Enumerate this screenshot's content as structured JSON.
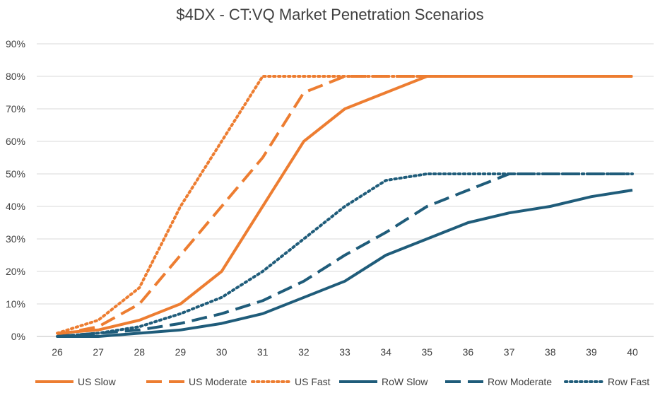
{
  "chart_data": {
    "type": "line",
    "title": "$4DX - CT:VQ Market Penetration Scenarios",
    "xlabel": "",
    "ylabel": "",
    "x": [
      26,
      27,
      28,
      29,
      30,
      31,
      32,
      33,
      34,
      35,
      36,
      37,
      38,
      39,
      40
    ],
    "x_tick_labels": [
      "26",
      "27",
      "28",
      "29",
      "30",
      "31",
      "32",
      "33",
      "34",
      "35",
      "36",
      "37",
      "38",
      "39",
      "40"
    ],
    "ylim": [
      0,
      90
    ],
    "y_ticks": [
      0,
      10,
      20,
      30,
      40,
      50,
      60,
      70,
      80,
      90
    ],
    "y_tick_labels": [
      "0%",
      "10%",
      "20%",
      "30%",
      "40%",
      "50%",
      "60%",
      "70%",
      "80%",
      "90%"
    ],
    "grid": true,
    "legend_position": "bottom",
    "series": [
      {
        "name": "US Slow",
        "color": "#ED7D31",
        "dash": "solid",
        "values": [
          1,
          2,
          5,
          10,
          20,
          40,
          60,
          70,
          75,
          80,
          80,
          80,
          80,
          80,
          80
        ]
      },
      {
        "name": "US Moderate",
        "color": "#ED7D31",
        "dash": "dash",
        "values": [
          0.5,
          3,
          10,
          25,
          40,
          55,
          75,
          80,
          80,
          80,
          80,
          80,
          80,
          80,
          80
        ]
      },
      {
        "name": "US Fast",
        "color": "#ED7D31",
        "dash": "dot",
        "values": [
          1,
          5,
          15,
          40,
          60,
          80,
          80,
          80,
          80,
          80,
          80,
          80,
          80,
          80,
          80
        ]
      },
      {
        "name": "RoW Slow",
        "color": "#1F5C7A",
        "dash": "solid",
        "values": [
          0,
          0,
          1,
          2,
          4,
          7,
          12,
          17,
          25,
          30,
          35,
          38,
          40,
          43,
          45
        ]
      },
      {
        "name": "Row Moderate",
        "color": "#1F5C7A",
        "dash": "dash",
        "values": [
          0,
          1,
          2,
          4,
          7,
          11,
          17,
          25,
          32,
          40,
          45,
          50,
          50,
          50,
          50
        ]
      },
      {
        "name": "Row Fast",
        "color": "#1F5C7A",
        "dash": "dot",
        "values": [
          0,
          1,
          3,
          7,
          12,
          20,
          30,
          40,
          48,
          50,
          50,
          50,
          50,
          50,
          50
        ]
      }
    ]
  }
}
